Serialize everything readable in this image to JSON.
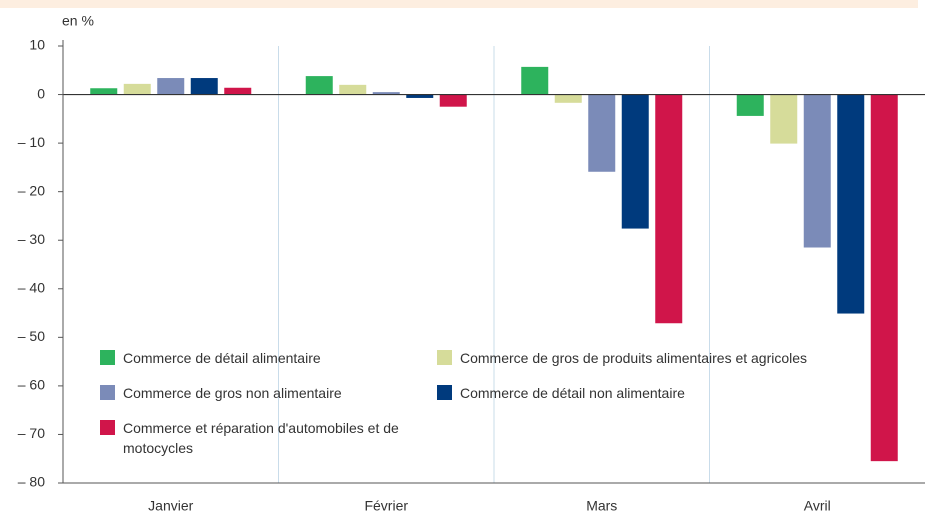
{
  "chart_data": {
    "type": "bar",
    "y_unit_label": "en %",
    "categories": [
      "Janvier",
      "Février",
      "Mars",
      "Avril"
    ],
    "series": [
      {
        "name": "Commerce de détail alimentaire",
        "color": "#2db35d",
        "values": [
          1.3,
          3.8,
          5.7,
          -4.4
        ]
      },
      {
        "name": "Commerce de gros de produits alimentaires et agricoles",
        "color": "#d6dc9a",
        "values": [
          2.2,
          2.0,
          -1.7,
          -10.1
        ]
      },
      {
        "name": "Commerce de gros non alimentaire",
        "color": "#7b8bb8",
        "values": [
          3.4,
          0.5,
          -15.9,
          -31.5
        ]
      },
      {
        "name": "Commerce de détail non alimentaire",
        "color": "#003a7d",
        "values": [
          3.4,
          -0.7,
          -27.6,
          -45.1
        ]
      },
      {
        "name": "Commerce et réparation d'automobiles et de motocycles",
        "color": "#d0154a",
        "values": [
          1.4,
          -2.5,
          -47.1,
          -75.5
        ]
      }
    ],
    "ylim": [
      -80,
      10
    ],
    "yticks": [
      10,
      0,
      {
        "value": -10,
        "label": "– 10"
      },
      {
        "value": -20,
        "label": "– 20"
      },
      {
        "value": -30,
        "label": "– 30"
      },
      {
        "value": -40,
        "label": "– 40"
      },
      {
        "value": -50,
        "label": "– 50"
      },
      {
        "value": -60,
        "label": "– 60"
      },
      {
        "value": -70,
        "label": "– 70"
      },
      {
        "value": -80,
        "label": "– 80"
      }
    ]
  }
}
